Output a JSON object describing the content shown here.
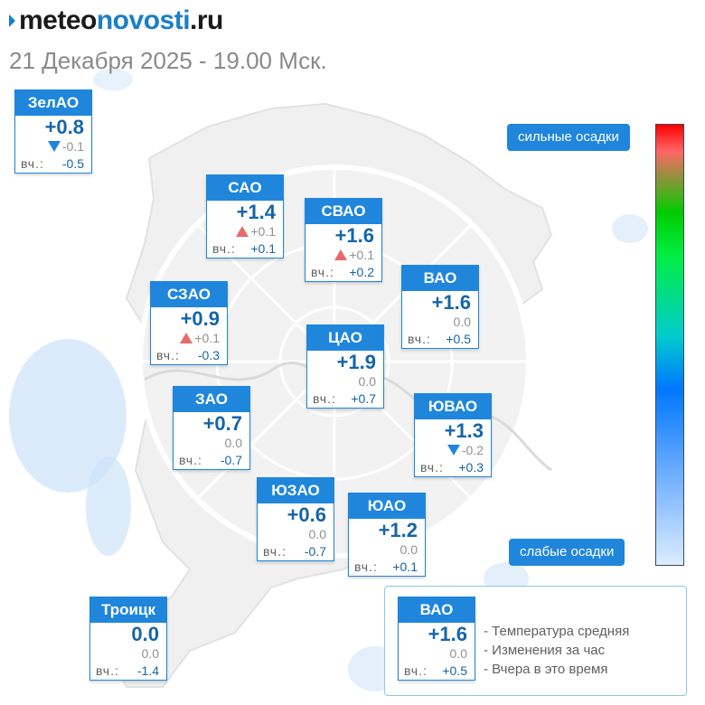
{
  "header": {
    "logo_dark": "meteo",
    "logo_blue": "novosti",
    "logo_tld": ".ru",
    "subtitle": "21 Декабря 2025 - 19.00 Мск."
  },
  "colors": {
    "accent": "#1f86dc",
    "temp_text": "#1565a8",
    "rise_arrow": "#e8696c",
    "fall_arrow": "#1f86dc"
  },
  "districts": [
    {
      "id": "zelao",
      "name": "ЗелАО",
      "temp": "+0.8",
      "trend": "down",
      "change": "-0.1",
      "yday_label": "вч.:",
      "yday": "-0.5"
    },
    {
      "id": "sao",
      "name": "САО",
      "temp": "+1.4",
      "trend": "up",
      "change": "+0.1",
      "yday_label": "вч.:",
      "yday": "+0.1"
    },
    {
      "id": "svao",
      "name": "СВАО",
      "temp": "+1.6",
      "trend": "up",
      "change": "+0.1",
      "yday_label": "вч.:",
      "yday": "+0.2"
    },
    {
      "id": "vao",
      "name": "ВАО",
      "temp": "+1.6",
      "trend": "none",
      "change": "0.0",
      "yday_label": "вч.:",
      "yday": "+0.5"
    },
    {
      "id": "szao",
      "name": "СЗАО",
      "temp": "+0.9",
      "trend": "up",
      "change": "+0.1",
      "yday_label": "вч.:",
      "yday": "-0.3"
    },
    {
      "id": "cao",
      "name": "ЦАО",
      "temp": "+1.9",
      "trend": "none",
      "change": "0.0",
      "yday_label": "вч.:",
      "yday": "+0.7"
    },
    {
      "id": "zao",
      "name": "ЗАО",
      "temp": "+0.7",
      "trend": "none",
      "change": "0.0",
      "yday_label": "вч.:",
      "yday": "-0.7"
    },
    {
      "id": "yuvao",
      "name": "ЮВАО",
      "temp": "+1.3",
      "trend": "down",
      "change": "-0.2",
      "yday_label": "вч.:",
      "yday": "+0.3"
    },
    {
      "id": "yuzao",
      "name": "ЮЗАО",
      "temp": "+0.6",
      "trend": "none",
      "change": "0.0",
      "yday_label": "вч.:",
      "yday": "-0.7"
    },
    {
      "id": "yuao",
      "name": "ЮАО",
      "temp": "+1.2",
      "trend": "none",
      "change": "0.0",
      "yday_label": "вч.:",
      "yday": "+0.1"
    },
    {
      "id": "troitsk",
      "name": "Троицк",
      "temp": "0.0",
      "trend": "none",
      "change": "0.0",
      "yday_label": "вч.:",
      "yday": "-1.4"
    }
  ],
  "scale": {
    "top_label": "сильные осадки",
    "bottom_label": "слабые осадки"
  },
  "legend": {
    "sample": {
      "name": "ВАО",
      "temp": "+1.6",
      "change": "0.0",
      "yday_label": "вч.:",
      "yday": "+0.5"
    },
    "items": [
      "- Температура средняя",
      "- Изменения за час",
      "- Вчера в это время"
    ]
  }
}
